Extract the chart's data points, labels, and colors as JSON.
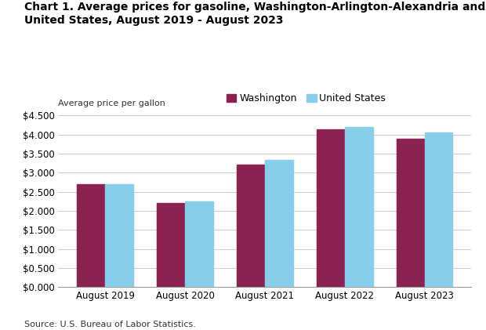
{
  "title_line1": "Chart 1. Average prices for gasoline, Washington-Arlington-Alexandria and",
  "title_line2": "United States, August 2019 - August 2023",
  "ylabel": "Average price per gallon",
  "source": "Source: U.S. Bureau of Labor Statistics.",
  "categories": [
    "August 2019",
    "August 2020",
    "August 2021",
    "August 2022",
    "August 2023"
  ],
  "washington": [
    2.7,
    2.196,
    3.208,
    4.13,
    3.898
  ],
  "united_states": [
    2.695,
    2.247,
    3.344,
    4.2,
    4.06
  ],
  "washington_color": "#8B2252",
  "us_color": "#87CEEB",
  "legend_washington": "Washington",
  "legend_us": "United States",
  "ylim": [
    0,
    4.5
  ],
  "yticks": [
    0.0,
    0.5,
    1.0,
    1.5,
    2.0,
    2.5,
    3.0,
    3.5,
    4.0,
    4.5
  ],
  "background_color": "#ffffff",
  "title_fontsize": 10,
  "axis_label_fontsize": 8,
  "tick_fontsize": 8.5,
  "legend_fontsize": 9,
  "source_fontsize": 8,
  "bar_width": 0.35
}
